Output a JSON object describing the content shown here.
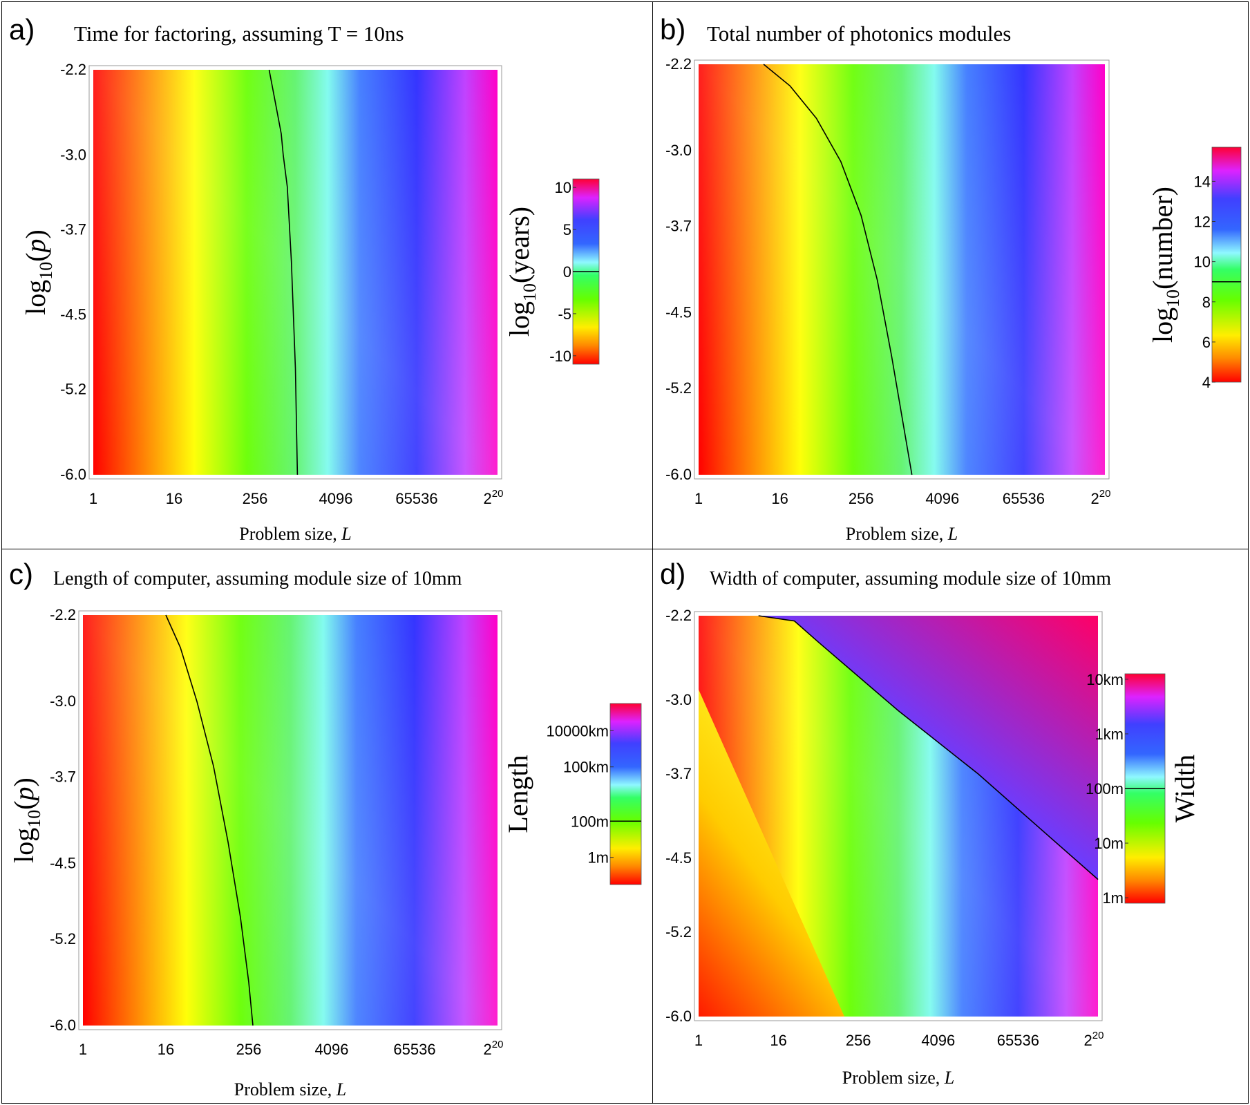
{
  "chart_data": [
    {
      "type": "heatmap",
      "panel_label": "a)",
      "title": "Time for factoring, assuming T = 10ns",
      "xlabel": "Problem size, L",
      "ylabel": "log10(p)",
      "x_ticks": [
        "1",
        "16",
        "256",
        "4096",
        "65536",
        "2^20"
      ],
      "x_tick_log2": [
        0,
        4,
        8,
        12,
        16,
        20
      ],
      "y_ticks": [
        "-2.2",
        "-3.0",
        "-3.7",
        "-4.5",
        "-5.2",
        "-6.0"
      ],
      "y_tick_values": [
        -2.2,
        -3.0,
        -3.7,
        -4.5,
        -5.2,
        -6.0
      ],
      "xlim_log2": [
        0,
        20
      ],
      "ylim": [
        -6.0,
        -2.2
      ],
      "colorbar": {
        "label": "log10(years)",
        "ticks": [
          "10",
          "5",
          "0",
          "-5",
          "-10"
        ],
        "tick_values": [
          10,
          5,
          0,
          -5,
          -10
        ],
        "range": [
          -11,
          11
        ],
        "contour_value": 0
      },
      "contour_line": {
        "description": "contour at 1 year",
        "log2L": [
          8.7,
          9.0,
          9.3,
          9.4,
          9.6,
          9.8,
          10.0,
          10.1
        ],
        "log10p": [
          -2.2,
          -2.5,
          -2.8,
          -3.0,
          -3.3,
          -4.0,
          -5.0,
          -6.0
        ]
      }
    },
    {
      "type": "heatmap",
      "panel_label": "b)",
      "title": "Total number of photonics modules",
      "xlabel": "Problem size, L",
      "ylabel": "",
      "x_ticks": [
        "1",
        "16",
        "256",
        "4096",
        "65536",
        "2^20"
      ],
      "x_tick_log2": [
        0,
        4,
        8,
        12,
        16,
        20
      ],
      "y_ticks": [
        "-2.2",
        "-3.0",
        "-3.7",
        "-4.5",
        "-5.2",
        "-6.0"
      ],
      "y_tick_values": [
        -2.2,
        -3.0,
        -3.7,
        -4.5,
        -5.2,
        -6.0
      ],
      "xlim_log2": [
        0,
        20
      ],
      "ylim": [
        -6.0,
        -2.2
      ],
      "colorbar": {
        "label": "log10(number)",
        "ticks": [
          "14",
          "12",
          "10",
          "8",
          "6",
          "4"
        ],
        "tick_values": [
          14,
          12,
          10,
          8,
          6,
          4
        ],
        "range": [
          4,
          15.7
        ],
        "contour_value": 9
      },
      "contour_line": {
        "description": "contour at 10^9 modules",
        "log2L": [
          3.2,
          4.5,
          5.8,
          7.0,
          8.0,
          8.8,
          9.5,
          10.5
        ],
        "log10p": [
          -2.2,
          -2.4,
          -2.7,
          -3.1,
          -3.6,
          -4.2,
          -4.9,
          -6.0
        ]
      }
    },
    {
      "type": "heatmap",
      "panel_label": "c)",
      "title": "Length of computer, assuming module size of 10mm",
      "xlabel": "Problem size, L",
      "ylabel": "log10(p)",
      "x_ticks": [
        "1",
        "16",
        "256",
        "4096",
        "65536",
        "2^20"
      ],
      "x_tick_log2": [
        0,
        4,
        8,
        12,
        16,
        20
      ],
      "y_ticks": [
        "-2.2",
        "-3.0",
        "-3.7",
        "-4.5",
        "-5.2",
        "-6.0"
      ],
      "y_tick_values": [
        -2.2,
        -3.0,
        -3.7,
        -4.5,
        -5.2,
        -6.0
      ],
      "xlim_log2": [
        0,
        20
      ],
      "ylim": [
        -6.0,
        -2.2
      ],
      "colorbar": {
        "label": "Length",
        "ticks": [
          "10000km",
          "100km",
          "100m",
          "1m"
        ],
        "tick_values_log10_m": [
          7,
          5,
          2,
          0
        ],
        "range_log10_m": [
          -1.5,
          8.5
        ],
        "contour_value": 2
      },
      "contour_line": {
        "description": "contour at 100m",
        "log2L": [
          4.0,
          4.7,
          5.5,
          6.3,
          7.0,
          7.6,
          8.0,
          8.2
        ],
        "log10p": [
          -2.2,
          -2.5,
          -3.0,
          -3.6,
          -4.3,
          -5.0,
          -5.6,
          -6.0
        ]
      }
    },
    {
      "type": "heatmap",
      "panel_label": "d)",
      "title": "Width of computer, assuming module size of 10mm",
      "xlabel": "Problem size, L",
      "ylabel": "",
      "x_ticks": [
        "1",
        "16",
        "256",
        "4096",
        "65536",
        "2^20"
      ],
      "x_tick_log2": [
        0,
        4,
        8,
        12,
        16,
        20
      ],
      "y_ticks": [
        "-2.2",
        "-3.0",
        "-3.7",
        "-4.5",
        "-5.2",
        "-6.0"
      ],
      "y_tick_values": [
        -2.2,
        -3.0,
        -3.7,
        -4.5,
        -5.2,
        -6.0
      ],
      "xlim_log2": [
        0,
        20
      ],
      "ylim": [
        -6.0,
        -2.2
      ],
      "colorbar": {
        "label": "Width",
        "ticks": [
          "10km",
          "1km",
          "100m",
          "10m",
          "1m"
        ],
        "tick_values_log10_m": [
          4,
          3,
          2,
          1,
          0
        ],
        "range_log10_m": [
          -0.1,
          4.1
        ],
        "contour_value": 2
      },
      "contour_line": {
        "description": "contour at 100m (boundary of blue region)",
        "log2L": [
          3.0,
          4.8,
          6.0,
          10.0,
          14.0,
          17.0,
          20.0
        ],
        "log10p": [
          -2.2,
          -2.25,
          -2.45,
          -3.1,
          -3.7,
          -4.2,
          -4.7
        ]
      }
    }
  ]
}
